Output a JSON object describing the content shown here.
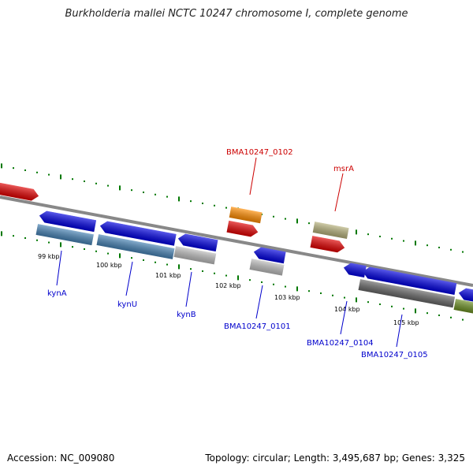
{
  "title": "Burkholderia mallei NCTC 10247 chromosome I, complete genome",
  "footer": {
    "accession": "Accession: NC_009080",
    "topology": "Topology: circular; Length: 3,495,687 bp; Genes: 3,325"
  },
  "colors": {
    "forward_gene": "#e00000",
    "reverse_gene": "#0000e0",
    "rna": "#ff8c00",
    "cds_steel": "#4682b4",
    "cds_gray": "#bbbbbb",
    "cds_khaki": "#b5b07a",
    "cds_dark": "#666666",
    "cds_olive": "#6b8e23",
    "top_label": "#cc0000",
    "bottom_label": "#0000cc",
    "tick": "#007700",
    "backbone": "#888888"
  },
  "scale": {
    "ticks": [
      "99 kbp",
      "100 kbp",
      "101 kbp",
      "102 kbp",
      "103 kbp",
      "104 kbp",
      "105 kbp"
    ]
  },
  "features": [
    {
      "name": "kynA",
      "strand": "reverse"
    },
    {
      "name": "kynU",
      "strand": "reverse"
    },
    {
      "name": "kynB",
      "strand": "reverse"
    },
    {
      "name": "BMA10247_0101",
      "strand": "reverse"
    },
    {
      "name": "BMA10247_0104",
      "strand": "reverse"
    },
    {
      "name": "BMA10247_0105",
      "strand": "reverse"
    },
    {
      "name": "BMA10247_0102",
      "strand": "forward"
    },
    {
      "name": "msrA",
      "strand": "forward"
    }
  ]
}
